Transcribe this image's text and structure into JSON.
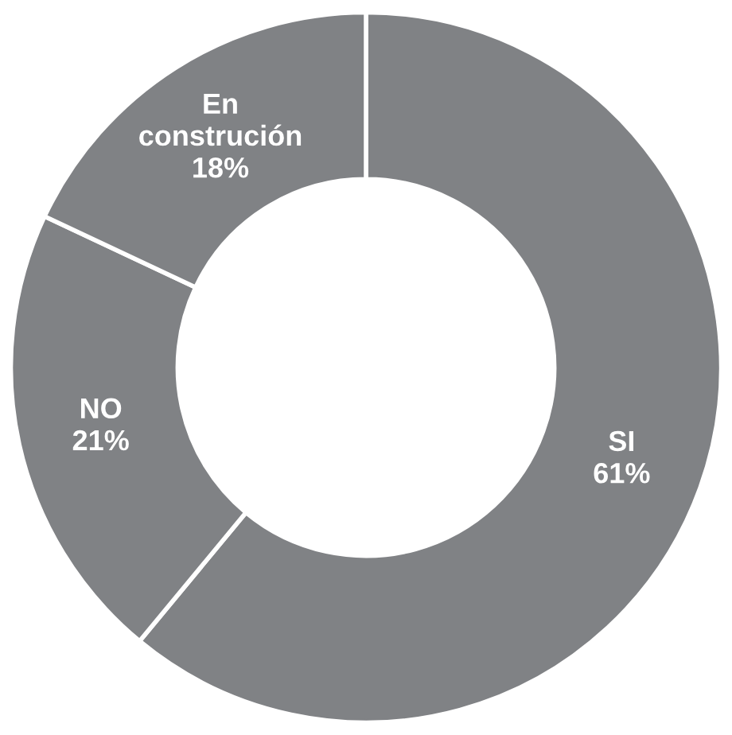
{
  "chart_data": {
    "type": "donut",
    "categories": [
      "SI",
      "NO",
      "En construción"
    ],
    "values": [
      61,
      21,
      18
    ],
    "colors": [
      "#808285",
      "#808285",
      "#808285"
    ],
    "value_labels": [
      "61%",
      "21%",
      "18%"
    ],
    "legend": false
  }
}
